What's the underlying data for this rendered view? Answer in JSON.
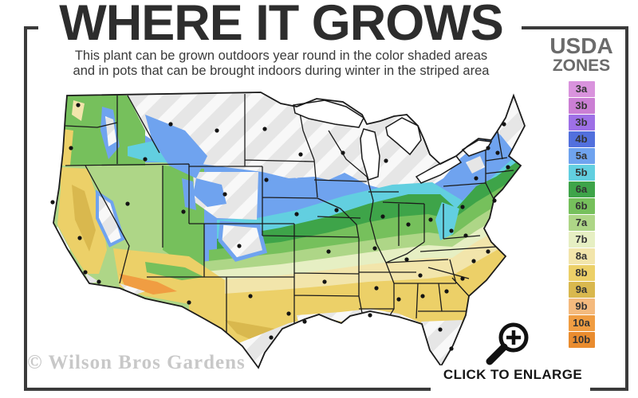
{
  "header": {
    "title": "WHERE IT GROWS",
    "subtitle_line1": "This plant can be grown outdoors year round in the color shaded areas",
    "subtitle_line2": "and in pots that can be brought indoors during winter in the striped area"
  },
  "legend": {
    "title_line1": "USDA",
    "title_line2": "ZONES",
    "zones": [
      {
        "label": "3a",
        "color": "#d993dd"
      },
      {
        "label": "3b",
        "color": "#cb7fd4"
      },
      {
        "label": "3b",
        "color": "#9e70e6"
      },
      {
        "label": "4b",
        "color": "#5270dd"
      },
      {
        "label": "5a",
        "color": "#6fa3ef"
      },
      {
        "label": "5b",
        "color": "#62cfe0"
      },
      {
        "label": "6a",
        "color": "#3ea449"
      },
      {
        "label": "6b",
        "color": "#76c05c"
      },
      {
        "label": "7a",
        "color": "#aed687"
      },
      {
        "label": "7b",
        "color": "#e6efc3"
      },
      {
        "label": "8a",
        "color": "#f2e5ab"
      },
      {
        "label": "8b",
        "color": "#ecd068"
      },
      {
        "label": "9a",
        "color": "#d9b84e"
      },
      {
        "label": "9b",
        "color": "#f4ba7e"
      },
      {
        "label": "10a",
        "color": "#f09d42"
      },
      {
        "label": "10b",
        "color": "#e98c2f"
      }
    ]
  },
  "map": {
    "description": "USDA plant hardiness zones map of the continental United States; striped gray areas mark zones where the plant must overwinter indoors in pots",
    "colors": {
      "land_outline": "#1b1b1b",
      "state_border": "#1b1b1b",
      "hatch_base": "#e6e6e6",
      "hatch_stripe": "#f8f8f8",
      "lake_fill": "#ffffff",
      "city_dot": "#141414"
    }
  },
  "watermark": "© Wilson Bros Gardens",
  "enlarge": {
    "label": "CLICK TO ENLARGE"
  },
  "frame_color": "#3b3b3b"
}
